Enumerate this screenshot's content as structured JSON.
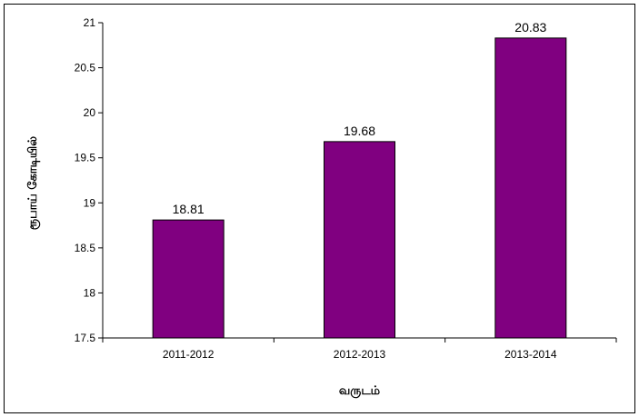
{
  "chart_data": {
    "type": "bar",
    "categories": [
      "2011-2012",
      "2012-2013",
      "2013-2014"
    ],
    "values": [
      18.81,
      19.68,
      20.83
    ],
    "data_labels": [
      "18.81",
      "19.68",
      "20.83"
    ],
    "title": "",
    "xlabel": "வருடம்",
    "ylabel": "ரூபாய் கோடியில்",
    "ylim": [
      17.5,
      21
    ],
    "yticks": [
      17.5,
      18,
      18.5,
      19,
      19.5,
      20,
      20.5,
      21
    ],
    "ytick_labels": [
      "17.5",
      "18",
      "18.5",
      "19",
      "19.5",
      "20",
      "20.5",
      "21"
    ],
    "grid": false,
    "legend": "none",
    "bar_color": "#800080",
    "bar_edge_color": "#000000"
  }
}
